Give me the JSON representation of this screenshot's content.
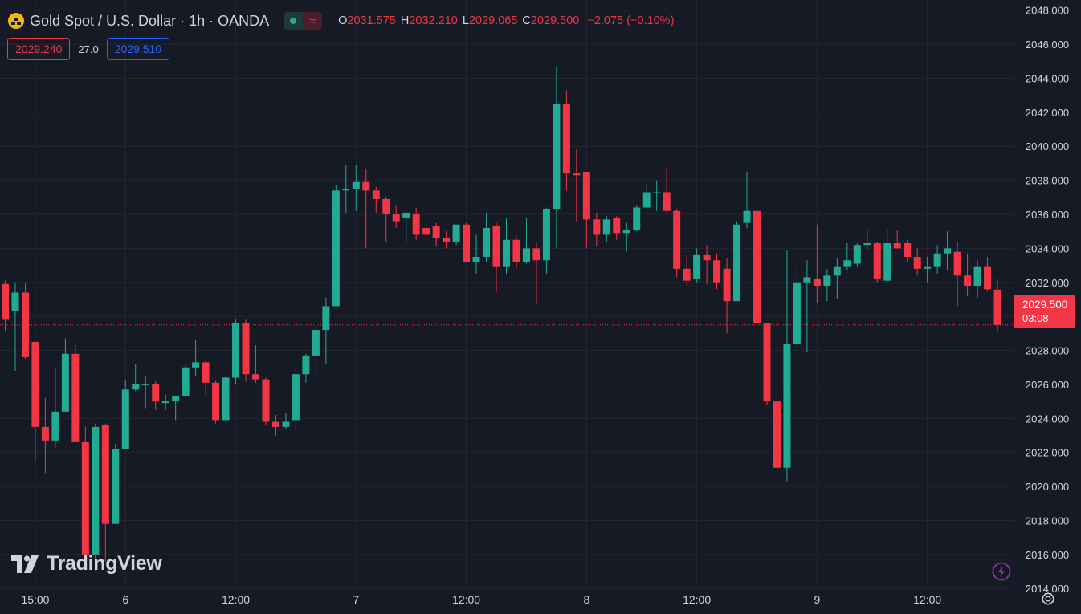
{
  "header": {
    "symbol_title": "Gold Spot / U.S. Dollar · 1h · OANDA",
    "ohlc": {
      "o_label": "O",
      "o_value": "2031.575",
      "h_label": "H",
      "h_value": "2032.210",
      "l_label": "L",
      "l_value": "2029.065",
      "c_label": "C",
      "c_value": "2029.500",
      "change": "−2.075 (−0.10%)"
    },
    "sell_price": "2029.240",
    "spread": "27.0",
    "buy_price": "2029.510"
  },
  "price_tag": {
    "price": "2029.500",
    "countdown": "03:08"
  },
  "brand": "TradingView",
  "colors": {
    "background": "#161a25",
    "up": "#22ab94",
    "down": "#f23645",
    "grid": "#232632",
    "text": "#d1d4dc",
    "buy": "#2962ff"
  },
  "icons": {
    "symbol": "gold-bars-icon",
    "market_status": "market-open-dot-icon",
    "data_status": "wave-icon",
    "bolt": "lightning-icon",
    "settings": "gear-icon"
  },
  "chart_data": {
    "type": "candlestick",
    "title": "Gold Spot / U.S. Dollar · 1h · OANDA",
    "ylim": [
      2012.5,
      2048.6
    ],
    "y_ticks": [
      2014,
      2016,
      2018,
      2020,
      2022,
      2024,
      2026,
      2028,
      2030,
      2032,
      2034,
      2036,
      2038,
      2040,
      2042,
      2044,
      2046,
      2048
    ],
    "x_ticks": [
      {
        "label": "15:00",
        "index": 3
      },
      {
        "label": "6",
        "index": 12
      },
      {
        "label": "12:00",
        "index": 23
      },
      {
        "label": "7",
        "index": 35
      },
      {
        "label": "12:00",
        "index": 46
      },
      {
        "label": "8",
        "index": 58
      },
      {
        "label": "12:00",
        "index": 69
      },
      {
        "label": "9",
        "index": 81
      },
      {
        "label": "12:00",
        "index": 92
      }
    ],
    "last_price": 2029.5,
    "grid": true,
    "candles": [
      {
        "o": 2031.9,
        "h": 2032.1,
        "l": 2029.1,
        "c": 2029.8
      },
      {
        "o": 2030.3,
        "h": 2032.0,
        "l": 2026.8,
        "c": 2031.4
      },
      {
        "o": 2031.4,
        "h": 2032.0,
        "l": 2027.5,
        "c": 2027.6
      },
      {
        "o": 2028.5,
        "h": 2028.5,
        "l": 2021.5,
        "c": 2023.5
      },
      {
        "o": 2023.5,
        "h": 2025.2,
        "l": 2020.8,
        "c": 2022.7
      },
      {
        "o": 2022.7,
        "h": 2027.0,
        "l": 2022.3,
        "c": 2024.4
      },
      {
        "o": 2024.4,
        "h": 2028.7,
        "l": 2024.4,
        "c": 2027.8
      },
      {
        "o": 2027.8,
        "h": 2028.3,
        "l": 2022.6,
        "c": 2022.6
      },
      {
        "o": 2022.6,
        "h": 2023.5,
        "l": 2015.1,
        "c": 2016.0
      },
      {
        "o": 2016.0,
        "h": 2023.7,
        "l": 2015.0,
        "c": 2023.5
      },
      {
        "o": 2023.6,
        "h": 2023.7,
        "l": 2015.6,
        "c": 2017.8
      },
      {
        "o": 2017.8,
        "h": 2022.5,
        "l": 2017.8,
        "c": 2022.2
      },
      {
        "o": 2022.2,
        "h": 2026.3,
        "l": 2022.2,
        "c": 2025.7
      },
      {
        "o": 2025.7,
        "h": 2027.2,
        "l": 2025.6,
        "c": 2026.0
      },
      {
        "o": 2026.0,
        "h": 2026.5,
        "l": 2024.6,
        "c": 2026.0
      },
      {
        "o": 2026.0,
        "h": 2026.2,
        "l": 2024.5,
        "c": 2025.0
      },
      {
        "o": 2024.9,
        "h": 2025.4,
        "l": 2024.5,
        "c": 2025.0
      },
      {
        "o": 2025.0,
        "h": 2025.2,
        "l": 2023.9,
        "c": 2025.3
      },
      {
        "o": 2025.3,
        "h": 2027.2,
        "l": 2025.3,
        "c": 2027.0
      },
      {
        "o": 2027.0,
        "h": 2028.6,
        "l": 2026.5,
        "c": 2027.3
      },
      {
        "o": 2027.3,
        "h": 2027.4,
        "l": 2025.4,
        "c": 2026.1
      },
      {
        "o": 2026.1,
        "h": 2026.2,
        "l": 2023.7,
        "c": 2023.9
      },
      {
        "o": 2023.9,
        "h": 2026.5,
        "l": 2023.9,
        "c": 2026.4
      },
      {
        "o": 2026.4,
        "h": 2029.8,
        "l": 2026.0,
        "c": 2029.6
      },
      {
        "o": 2029.6,
        "h": 2029.8,
        "l": 2026.2,
        "c": 2026.6
      },
      {
        "o": 2026.6,
        "h": 2028.3,
        "l": 2026.1,
        "c": 2026.3
      },
      {
        "o": 2026.3,
        "h": 2026.4,
        "l": 2023.6,
        "c": 2023.8
      },
      {
        "o": 2023.8,
        "h": 2024.2,
        "l": 2023.0,
        "c": 2023.5
      },
      {
        "o": 2023.5,
        "h": 2024.3,
        "l": 2023.4,
        "c": 2023.8
      },
      {
        "o": 2023.9,
        "h": 2027.0,
        "l": 2023.0,
        "c": 2026.6
      },
      {
        "o": 2026.6,
        "h": 2027.8,
        "l": 2026.1,
        "c": 2027.7
      },
      {
        "o": 2027.7,
        "h": 2029.5,
        "l": 2026.6,
        "c": 2029.2
      },
      {
        "o": 2029.2,
        "h": 2031.1,
        "l": 2027.2,
        "c": 2030.6
      },
      {
        "o": 2030.6,
        "h": 2037.7,
        "l": 2030.6,
        "c": 2037.4
      },
      {
        "o": 2037.4,
        "h": 2038.9,
        "l": 2036.1,
        "c": 2037.5
      },
      {
        "o": 2037.5,
        "h": 2038.9,
        "l": 2036.2,
        "c": 2037.9
      },
      {
        "o": 2037.9,
        "h": 2038.7,
        "l": 2034.0,
        "c": 2037.4
      },
      {
        "o": 2037.4,
        "h": 2037.6,
        "l": 2036.1,
        "c": 2036.9
      },
      {
        "o": 2036.9,
        "h": 2037.0,
        "l": 2034.4,
        "c": 2036.0
      },
      {
        "o": 2036.0,
        "h": 2036.5,
        "l": 2035.2,
        "c": 2035.6
      },
      {
        "o": 2035.8,
        "h": 2036.1,
        "l": 2034.3,
        "c": 2036.1
      },
      {
        "o": 2036.0,
        "h": 2036.4,
        "l": 2034.5,
        "c": 2034.8
      },
      {
        "o": 2035.2,
        "h": 2035.4,
        "l": 2034.3,
        "c": 2034.8
      },
      {
        "o": 2035.3,
        "h": 2035.5,
        "l": 2034.1,
        "c": 2034.6
      },
      {
        "o": 2034.6,
        "h": 2035.0,
        "l": 2034.0,
        "c": 2034.4
      },
      {
        "o": 2034.4,
        "h": 2035.4,
        "l": 2034.2,
        "c": 2035.4
      },
      {
        "o": 2035.4,
        "h": 2035.5,
        "l": 2033.2,
        "c": 2033.2
      },
      {
        "o": 2033.2,
        "h": 2034.8,
        "l": 2032.5,
        "c": 2033.5
      },
      {
        "o": 2033.5,
        "h": 2036.1,
        "l": 2033.2,
        "c": 2035.2
      },
      {
        "o": 2035.3,
        "h": 2035.5,
        "l": 2031.4,
        "c": 2032.9
      },
      {
        "o": 2032.9,
        "h": 2035.8,
        "l": 2032.5,
        "c": 2034.5
      },
      {
        "o": 2034.5,
        "h": 2034.7,
        "l": 2032.8,
        "c": 2033.2
      },
      {
        "o": 2033.2,
        "h": 2035.8,
        "l": 2033.1,
        "c": 2034.0
      },
      {
        "o": 2034.0,
        "h": 2034.4,
        "l": 2030.7,
        "c": 2033.3
      },
      {
        "o": 2033.3,
        "h": 2036.4,
        "l": 2032.5,
        "c": 2036.3
      },
      {
        "o": 2036.3,
        "h": 2044.7,
        "l": 2034.0,
        "c": 2042.5
      },
      {
        "o": 2042.5,
        "h": 2043.3,
        "l": 2037.4,
        "c": 2038.4
      },
      {
        "o": 2038.4,
        "h": 2039.8,
        "l": 2035.6,
        "c": 2038.3
      },
      {
        "o": 2038.5,
        "h": 2038.5,
        "l": 2034.0,
        "c": 2035.7
      },
      {
        "o": 2035.7,
        "h": 2036.1,
        "l": 2034.1,
        "c": 2034.8
      },
      {
        "o": 2034.8,
        "h": 2035.9,
        "l": 2034.4,
        "c": 2035.7
      },
      {
        "o": 2035.8,
        "h": 2035.9,
        "l": 2034.5,
        "c": 2034.9
      },
      {
        "o": 2034.9,
        "h": 2035.5,
        "l": 2033.8,
        "c": 2035.1
      },
      {
        "o": 2035.1,
        "h": 2036.5,
        "l": 2035.0,
        "c": 2036.4
      },
      {
        "o": 2036.4,
        "h": 2037.8,
        "l": 2036.3,
        "c": 2037.3
      },
      {
        "o": 2037.3,
        "h": 2038.0,
        "l": 2036.2,
        "c": 2037.3
      },
      {
        "o": 2037.3,
        "h": 2038.8,
        "l": 2036.0,
        "c": 2036.2
      },
      {
        "o": 2036.2,
        "h": 2036.3,
        "l": 2032.3,
        "c": 2032.8
      },
      {
        "o": 2032.8,
        "h": 2033.6,
        "l": 2031.8,
        "c": 2032.1
      },
      {
        "o": 2032.2,
        "h": 2034.0,
        "l": 2032.0,
        "c": 2033.6
      },
      {
        "o": 2033.6,
        "h": 2034.2,
        "l": 2031.9,
        "c": 2033.3
      },
      {
        "o": 2033.3,
        "h": 2033.7,
        "l": 2031.6,
        "c": 2032.0
      },
      {
        "o": 2032.8,
        "h": 2033.4,
        "l": 2029.0,
        "c": 2030.9
      },
      {
        "o": 2030.9,
        "h": 2035.6,
        "l": 2030.9,
        "c": 2035.4
      },
      {
        "o": 2035.5,
        "h": 2038.5,
        "l": 2035.2,
        "c": 2036.2
      },
      {
        "o": 2036.2,
        "h": 2036.4,
        "l": 2028.6,
        "c": 2029.6
      },
      {
        "o": 2029.6,
        "h": 2029.6,
        "l": 2024.8,
        "c": 2025.0
      },
      {
        "o": 2025.0,
        "h": 2026.1,
        "l": 2021.0,
        "c": 2021.1
      },
      {
        "o": 2021.1,
        "h": 2033.9,
        "l": 2020.3,
        "c": 2028.4
      },
      {
        "o": 2028.4,
        "h": 2032.9,
        "l": 2027.7,
        "c": 2032.0
      },
      {
        "o": 2032.0,
        "h": 2033.3,
        "l": 2027.9,
        "c": 2032.3
      },
      {
        "o": 2032.2,
        "h": 2035.4,
        "l": 2030.8,
        "c": 2031.8
      },
      {
        "o": 2031.8,
        "h": 2032.8,
        "l": 2030.9,
        "c": 2032.4
      },
      {
        "o": 2032.4,
        "h": 2033.4,
        "l": 2031.0,
        "c": 2032.9
      },
      {
        "o": 2032.9,
        "h": 2034.3,
        "l": 2032.7,
        "c": 2033.3
      },
      {
        "o": 2033.1,
        "h": 2034.3,
        "l": 2032.9,
        "c": 2034.2
      },
      {
        "o": 2034.2,
        "h": 2035.1,
        "l": 2033.9,
        "c": 2034.3
      },
      {
        "o": 2034.3,
        "h": 2034.4,
        "l": 2032.0,
        "c": 2032.2
      },
      {
        "o": 2032.1,
        "h": 2035.1,
        "l": 2032.0,
        "c": 2034.3
      },
      {
        "o": 2034.3,
        "h": 2035.1,
        "l": 2034.0,
        "c": 2034.0
      },
      {
        "o": 2034.3,
        "h": 2034.5,
        "l": 2033.2,
        "c": 2033.5
      },
      {
        "o": 2033.5,
        "h": 2034.0,
        "l": 2032.4,
        "c": 2032.8
      },
      {
        "o": 2032.8,
        "h": 2033.5,
        "l": 2032.0,
        "c": 2032.9
      },
      {
        "o": 2032.9,
        "h": 2034.2,
        "l": 2032.5,
        "c": 2033.7
      },
      {
        "o": 2033.7,
        "h": 2035.0,
        "l": 2032.7,
        "c": 2034.0
      },
      {
        "o": 2033.8,
        "h": 2034.4,
        "l": 2030.6,
        "c": 2032.4
      },
      {
        "o": 2032.4,
        "h": 2033.7,
        "l": 2031.2,
        "c": 2031.8
      },
      {
        "o": 2031.8,
        "h": 2033.3,
        "l": 2031.1,
        "c": 2032.9
      },
      {
        "o": 2032.9,
        "h": 2033.5,
        "l": 2031.5,
        "c": 2031.6
      },
      {
        "o": 2031.575,
        "h": 2032.21,
        "l": 2029.065,
        "c": 2029.5
      }
    ]
  }
}
